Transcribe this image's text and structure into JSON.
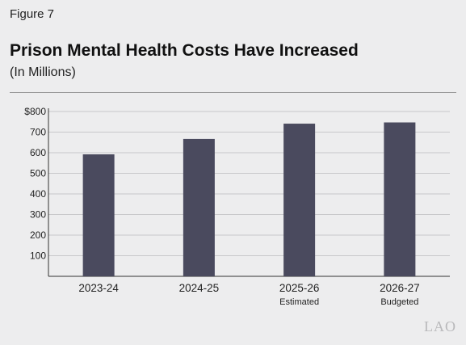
{
  "figure_label": "Figure 7",
  "chart_data": {
    "type": "bar",
    "title": "Prison Mental Health Costs Have Increased",
    "subtitle": "(In Millions)",
    "categories": [
      "2023-24",
      "2024-25",
      "2025-26",
      "2026-27"
    ],
    "category_notes": [
      "",
      "",
      "Estimated",
      "Budgeted"
    ],
    "values": [
      592,
      667,
      741,
      747
    ],
    "yticks": [
      "100",
      "200",
      "300",
      "400",
      "500",
      "600",
      "700",
      "$800"
    ],
    "ylim": [
      0,
      800
    ],
    "grid": true,
    "xlabel": "",
    "ylabel": "",
    "bar_color": "#4a4a5e"
  },
  "watermark": "LAO"
}
